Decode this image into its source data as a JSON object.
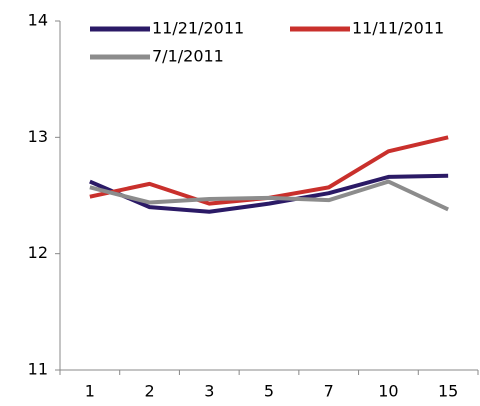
{
  "chart_data": {
    "type": "line",
    "categories": [
      "1",
      "2",
      "3",
      "5",
      "7",
      "10",
      "15"
    ],
    "series": [
      {
        "name": "11/21/2011",
        "color": "#2b1a66",
        "values": [
          12.62,
          12.4,
          12.36,
          12.43,
          12.52,
          12.66,
          12.67
        ]
      },
      {
        "name": "11/11/2011",
        "color": "#c9302c",
        "values": [
          12.49,
          12.6,
          12.43,
          12.48,
          12.57,
          12.88,
          13.0
        ]
      },
      {
        "name": "7/1/2011",
        "color": "#8c8c8c",
        "values": [
          12.57,
          12.44,
          12.47,
          12.48,
          12.46,
          12.62,
          12.38
        ]
      }
    ],
    "ylim": [
      11,
      14
    ],
    "yticks": [
      11,
      12,
      13,
      14
    ],
    "grid": false
  }
}
